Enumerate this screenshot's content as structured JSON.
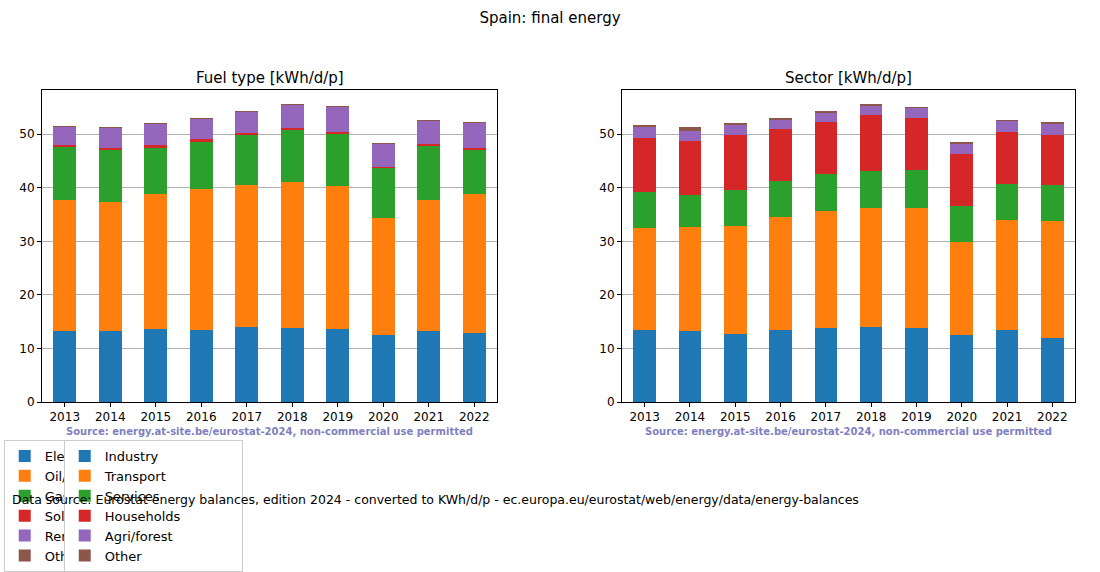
{
  "title": "Spain: final energy",
  "footer": "Data source: Eurostat energy balances, edition 2024 - converted to KWh/d/p - ec.europa.eu/eurostat/web/energy/data/energy-balances",
  "chart_data": [
    {
      "type": "bar",
      "stacked": true,
      "grid": true,
      "legend": "bottom",
      "title": "Fuel type [kWh/d/p]",
      "source_note": "Source: energy.at-site.be/eurostat-2024, non-commercial use permitted",
      "categories": [
        "2013",
        "2014",
        "2015",
        "2016",
        "2017",
        "2018",
        "2019",
        "2020",
        "2021",
        "2022"
      ],
      "ylim": [
        0,
        58.3
      ],
      "yticks": [
        0,
        10,
        20,
        30,
        40,
        50
      ],
      "series": [
        {
          "name": "Electricity",
          "color": "#1f77b4",
          "values": [
            13.3,
            13.3,
            13.7,
            13.5,
            14.0,
            13.9,
            13.7,
            12.6,
            13.2,
            12.8
          ]
        },
        {
          "name": "Oil/petrol",
          "color": "#ff7f0e",
          "values": [
            24.5,
            24.1,
            25.1,
            26.2,
            26.5,
            27.1,
            26.6,
            21.8,
            24.6,
            26.0
          ]
        },
        {
          "name": "Gas",
          "color": "#2ca02c",
          "values": [
            9.8,
            9.7,
            8.7,
            8.9,
            9.3,
            9.7,
            9.7,
            9.2,
            9.9,
            8.2
          ]
        },
        {
          "name": "Solid fossil",
          "color": "#d62728",
          "values": [
            0.4,
            0.4,
            0.4,
            0.4,
            0.4,
            0.4,
            0.4,
            0.3,
            0.4,
            0.4
          ]
        },
        {
          "name": "Renewables & biofuel",
          "color": "#9467bd",
          "values": [
            3.4,
            3.6,
            3.9,
            3.8,
            4.0,
            4.4,
            4.6,
            4.3,
            4.3,
            4.6
          ]
        },
        {
          "name": "Other",
          "color": "#8c564b",
          "values": [
            0.2,
            0.2,
            0.2,
            0.2,
            0.2,
            0.2,
            0.2,
            0.2,
            0.2,
            0.2
          ]
        }
      ]
    },
    {
      "type": "bar",
      "stacked": true,
      "grid": true,
      "legend": "bottom",
      "title": "Sector [kWh/d/p]",
      "source_note": "Source: energy.at-site.be/eurostat-2024, non-commercial use permitted",
      "categories": [
        "2013",
        "2014",
        "2015",
        "2016",
        "2017",
        "2018",
        "2019",
        "2020",
        "2021",
        "2022"
      ],
      "ylim": [
        0,
        58.3
      ],
      "yticks": [
        0,
        10,
        20,
        30,
        40,
        50
      ],
      "series": [
        {
          "name": "Industry",
          "color": "#1f77b4",
          "values": [
            13.4,
            13.2,
            12.7,
            13.5,
            13.9,
            14.0,
            13.8,
            12.5,
            13.5,
            12.0
          ]
        },
        {
          "name": "Transport",
          "color": "#ff7f0e",
          "values": [
            19.1,
            19.5,
            20.2,
            21.0,
            21.7,
            22.3,
            22.4,
            17.4,
            20.4,
            21.7
          ]
        },
        {
          "name": "Services",
          "color": "#2ca02c",
          "values": [
            6.7,
            6.0,
            6.7,
            6.7,
            7.0,
            6.9,
            7.2,
            6.6,
            6.8,
            6.8
          ]
        },
        {
          "name": "Households",
          "color": "#d62728",
          "values": [
            10.1,
            10.1,
            10.2,
            9.8,
            9.6,
            10.3,
            9.6,
            9.7,
            9.7,
            9.3
          ]
        },
        {
          "name": "Agri/forest",
          "color": "#9467bd",
          "values": [
            2.0,
            1.8,
            1.9,
            1.7,
            1.8,
            1.8,
            1.8,
            2.0,
            2.0,
            2.0
          ]
        },
        {
          "name": "Other",
          "color": "#8c564b",
          "values": [
            0.4,
            0.7,
            0.3,
            0.3,
            0.3,
            0.4,
            0.3,
            0.3,
            0.3,
            0.4
          ]
        }
      ]
    }
  ]
}
